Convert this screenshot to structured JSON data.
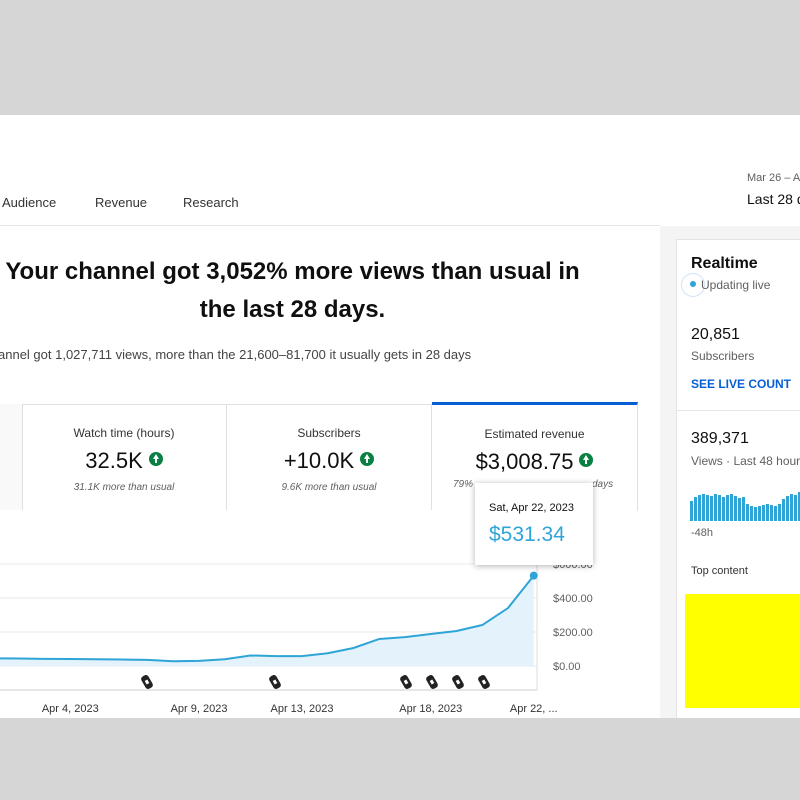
{
  "header": {
    "tabs": [
      "Audience",
      "Revenue",
      "Research"
    ],
    "date_range": "Mar 26 – A",
    "period": "Last 28 d"
  },
  "headline": {
    "title": "Your channel got 3,052% more views than usual in the last 28 days.",
    "subtitle": "annel got 1,027,711 views, more than the 21,600–81,700 it usually gets in 28 days"
  },
  "metrics": [
    {
      "label": "Watch time (hours)",
      "value": "32.5K",
      "note": "31.1K more than usual"
    },
    {
      "label": "Subscribers",
      "value": "+10.0K",
      "note": "9.6K more than usual"
    },
    {
      "label": "Estimated revenue",
      "value": "$3,008.75",
      "note_start": "79%",
      "note_end": "days"
    }
  ],
  "chart_data": {
    "type": "line",
    "categories": [
      null,
      null,
      null,
      "Apr 4, 2023",
      null,
      null,
      null,
      null,
      "Apr 9, 2023",
      null,
      null,
      null,
      "Apr 13, 2023",
      null,
      null,
      null,
      null,
      "Apr 18, 2023",
      null,
      null,
      null,
      "Apr 22, ..."
    ],
    "values": [
      45,
      44,
      42,
      41,
      40,
      38,
      36,
      28,
      30,
      40,
      62,
      58,
      58,
      75,
      106,
      159,
      170,
      188,
      206,
      241,
      341,
      531.34
    ],
    "color": "#2fa4d6",
    "ylim": [
      0,
      600
    ],
    "yticks": [
      {
        "value": 0,
        "label": "$0.00"
      },
      {
        "value": 200,
        "label": "$200.00"
      },
      {
        "value": 400,
        "label": "$400.00"
      },
      {
        "value": 600,
        "label": "$600.00"
      }
    ],
    "grid": true,
    "tooltip": {
      "label": "Sat, Apr 22, 2023",
      "value_label": "$531.34"
    }
  },
  "realtime": {
    "title": "Realtime",
    "status": "Updating live",
    "subscribers": "20,851",
    "subscribers_label": "Subscribers",
    "link": "SEE LIVE COUNT",
    "views": "389,371",
    "views_label": "Views · Last 48 hour",
    "bars_start": "-48h",
    "top_content": "Top content",
    "bars": [
      20,
      24,
      26,
      27,
      26,
      25,
      27,
      26,
      24,
      26,
      27,
      25,
      23,
      24,
      17,
      15,
      14,
      15,
      16,
      17,
      16,
      15,
      17,
      22,
      25,
      27,
      26,
      29
    ]
  }
}
